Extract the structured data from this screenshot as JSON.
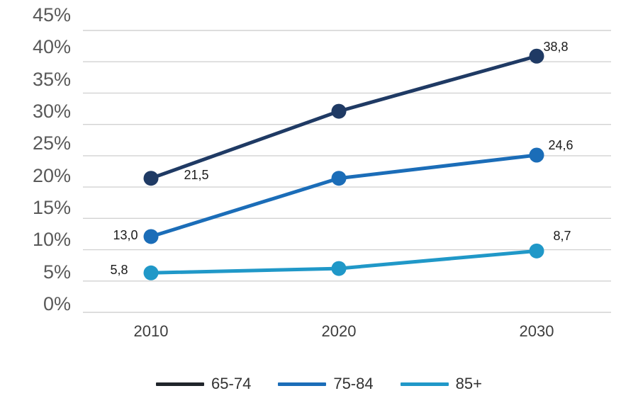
{
  "chart_data": {
    "type": "line",
    "title": "",
    "xlabel": "",
    "ylabel": "",
    "x_categories": [
      "2010",
      "2020",
      "2030"
    ],
    "y_ticks": [
      0,
      5,
      10,
      15,
      20,
      25,
      30,
      35,
      40,
      45
    ],
    "y_tick_suffix": "%",
    "ylim": [
      0,
      45
    ],
    "grid": "horizontal",
    "grid_color": "#d2d2d2",
    "background_color": "#ffffff",
    "legend_position": "bottom",
    "axis_label_color": "#595959",
    "series": [
      {
        "name": "65-74",
        "line_color": "#1f3a64",
        "legend_swatch_color": "#20252b",
        "values": [
          21.5,
          32.0,
          38.8
        ],
        "plot_percents": [
          21.4,
          32.1,
          40.9
        ],
        "point_labels": [
          "21,5",
          "",
          "38,8"
        ],
        "label_offsets": [
          [
            64,
            -5
          ],
          [
            0,
            0
          ],
          [
            27,
            -13
          ]
        ]
      },
      {
        "name": "75-84",
        "line_color": "#1b6db8",
        "legend_swatch_color": "#1b6db8",
        "values": [
          13.0,
          21.5,
          24.6
        ],
        "plot_percents": [
          12.1,
          21.4,
          25.1
        ],
        "point_labels": [
          "13,0",
          "",
          "24,6"
        ],
        "label_offsets": [
          [
            -36,
            -2
          ],
          [
            0,
            0
          ],
          [
            34,
            -14
          ]
        ]
      },
      {
        "name": "85+",
        "line_color": "#2098c8",
        "legend_swatch_color": "#2098c8",
        "values": [
          5.8,
          6.5,
          8.7
        ],
        "plot_percents": [
          6.3,
          7.0,
          9.8
        ],
        "point_labels": [
          "5,8",
          "",
          "8,7"
        ],
        "label_offsets": [
          [
            -45,
            -4
          ],
          [
            0,
            0
          ],
          [
            36,
            -21
          ]
        ]
      }
    ]
  }
}
